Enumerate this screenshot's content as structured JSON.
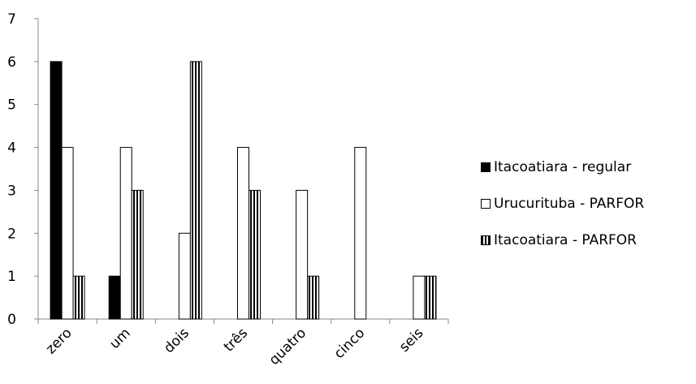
{
  "chart_data": {
    "type": "bar",
    "categories": [
      "zero",
      "um",
      "dois",
      "três",
      "quatro",
      "cinco",
      "seis"
    ],
    "series": [
      {
        "name": "Itacoatiara - regular",
        "values": [
          6,
          1,
          0,
          0,
          0,
          0,
          0
        ],
        "style": "solid",
        "color": "#000000"
      },
      {
        "name": "Urucurituba - PARFOR",
        "values": [
          4,
          4,
          2,
          4,
          3,
          4,
          1
        ],
        "style": "white",
        "color": "#ffffff"
      },
      {
        "name": "Itacoatiara - PARFOR",
        "values": [
          1,
          3,
          6,
          3,
          1,
          0,
          1
        ],
        "style": "striped",
        "color": "#000000"
      }
    ],
    "yticks": [
      "0",
      "1",
      "2",
      "3",
      "4",
      "5",
      "6",
      "7"
    ],
    "ylim": [
      0,
      7
    ],
    "title": "",
    "xlabel": "",
    "ylabel": "",
    "grid": false,
    "legend_position": "right"
  }
}
